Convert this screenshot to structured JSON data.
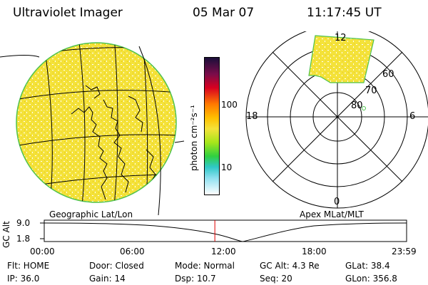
{
  "header": {
    "instrument": "Ultraviolet Imager",
    "date": "05 Mar 07",
    "time": "11:17:45 UT"
  },
  "colorbar": {
    "unit": "photon cm⁻²s⁻¹",
    "ticks": [
      "100",
      "10"
    ]
  },
  "polar": {
    "mlt_labels": {
      "top": "12",
      "left": "18",
      "right": "6",
      "bottom": "0"
    },
    "lat_labels": [
      "60",
      "70",
      "80"
    ]
  },
  "map_captions": {
    "left": "Geographic Lat/Lon",
    "right": "Apex MLat/MLT"
  },
  "altitude_plot": {
    "ylabel": "GC Alt",
    "yticks": [
      "9.0",
      "1.8"
    ],
    "xticks": [
      "00:00",
      "06:00",
      "12:00",
      "18:00",
      "23:59"
    ],
    "current_time_hours": 11.3
  },
  "info": {
    "row1": [
      "Flt: HOME",
      "Door: Closed",
      "Mode: Normal",
      "GC Alt: 4.3 Re",
      "GLat: 38.4"
    ],
    "row2": [
      "IP: 36.0",
      "Gain: 14",
      "Dsp: 10.7",
      "Seq: 20",
      "GLon: 356.8"
    ]
  },
  "colors": {
    "emission_fill": "#f4e23a",
    "marker": "#e00000",
    "limb": "#4ec24e"
  }
}
